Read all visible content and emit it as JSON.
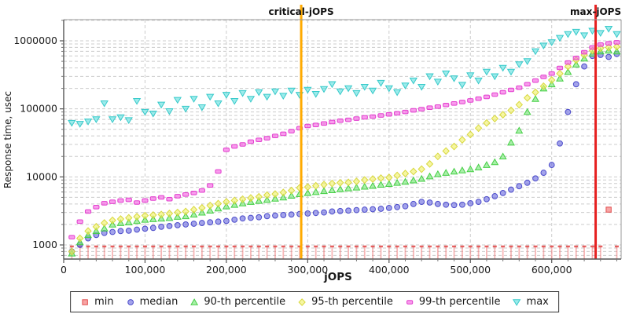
{
  "chart": {
    "y_axis": {
      "title": "Response time, usec",
      "scale": "log",
      "range": [
        620,
        2050000
      ],
      "tick_labels": [
        "1000",
        "10000",
        "100000",
        "1000000"
      ],
      "tick_values": [
        1000,
        10000,
        100000,
        1000000
      ]
    },
    "x_axis": {
      "title": "jOPS",
      "range": [
        0,
        690000
      ],
      "tick_labels": [
        "0",
        "100,000",
        "200,000",
        "300,000",
        "400,000",
        "500,000",
        "600,000"
      ],
      "tick_values": [
        0,
        100000,
        200000,
        300000,
        400000,
        500000,
        600000
      ],
      "minor_step": 20000
    },
    "annotations": [
      {
        "label": "critical-jOPS",
        "value": 292000,
        "color": "#ffaa00"
      },
      {
        "label": "max-jOPS",
        "value": 654000,
        "color": "#e62020"
      }
    ],
    "grid_color": "#cccccc"
  },
  "legend": {
    "items": [
      {
        "label": "min",
        "marker": "square",
        "fill": "#f26d6d",
        "stroke": "#e04848"
      },
      {
        "label": "median",
        "marker": "circle",
        "fill": "#6a6ade",
        "stroke": "#4646c8"
      },
      {
        "label": "90-th percentile",
        "marker": "triangle-up",
        "fill": "#74e574",
        "stroke": "#3ecc3e"
      },
      {
        "label": "95-th percentile",
        "marker": "diamond",
        "fill": "#f0f068",
        "stroke": "#d6d636"
      },
      {
        "label": "99-th percentile",
        "marker": "hbar",
        "fill": "#f45fe0",
        "stroke": "#e238cc"
      },
      {
        "label": "max",
        "marker": "triangle-down",
        "fill": "#5fdfdf",
        "stroke": "#2fc7c7"
      }
    ]
  },
  "chart_data": {
    "type": "scatter",
    "title": "",
    "xlabel": "jOPS",
    "ylabel": "Response time, usec",
    "x": [
      10000,
      20000,
      30000,
      40000,
      50000,
      60000,
      70000,
      80000,
      90000,
      100000,
      110000,
      120000,
      130000,
      140000,
      150000,
      160000,
      170000,
      180000,
      190000,
      200000,
      210000,
      220000,
      230000,
      240000,
      250000,
      260000,
      270000,
      280000,
      290000,
      300000,
      310000,
      320000,
      330000,
      340000,
      350000,
      360000,
      370000,
      380000,
      390000,
      400000,
      410000,
      420000,
      430000,
      440000,
      450000,
      460000,
      470000,
      480000,
      490000,
      500000,
      510000,
      520000,
      530000,
      540000,
      550000,
      560000,
      570000,
      580000,
      590000,
      600000,
      610000,
      620000,
      630000,
      640000,
      650000,
      660000,
      670000,
      680000,
      690000
    ],
    "series": [
      {
        "name": "min",
        "marker": "impulse",
        "fill": "#f26d6d",
        "stroke": "#e04848",
        "values": [
          950,
          950,
          950,
          950,
          950,
          950,
          950,
          950,
          950,
          950,
          950,
          950,
          950,
          950,
          950,
          950,
          950,
          950,
          950,
          950,
          950,
          950,
          950,
          950,
          950,
          950,
          950,
          950,
          950,
          950,
          950,
          950,
          950,
          950,
          950,
          950,
          950,
          950,
          950,
          950,
          950,
          950,
          950,
          950,
          950,
          950,
          950,
          950,
          950,
          950,
          950,
          950,
          950,
          950,
          950,
          950,
          950,
          950,
          950,
          950,
          950,
          950,
          950,
          950,
          950,
          950,
          3300,
          950,
          950
        ]
      },
      {
        "name": "median",
        "marker": "circle",
        "fill": "#6a6ade",
        "stroke": "#4646c8",
        "values": [
          800,
          1000,
          1250,
          1400,
          1500,
          1550,
          1600,
          1620,
          1680,
          1730,
          1780,
          1850,
          1900,
          1950,
          2000,
          2050,
          2100,
          2150,
          2200,
          2250,
          2350,
          2450,
          2500,
          2550,
          2650,
          2700,
          2750,
          2800,
          2850,
          2900,
          2950,
          3000,
          3100,
          3150,
          3200,
          3250,
          3300,
          3350,
          3400,
          3500,
          3600,
          3700,
          4000,
          4300,
          4200,
          4000,
          3900,
          3850,
          3900,
          4100,
          4300,
          4700,
          5200,
          5800,
          6500,
          7300,
          8200,
          9500,
          11500,
          15000,
          31000,
          90000,
          230000,
          420000,
          600000,
          620000,
          580000,
          640000,
          600000
        ]
      },
      {
        "name": "90-th percentile",
        "marker": "triangle-up",
        "fill": "#74e574",
        "stroke": "#3ecc3e",
        "values": [
          750,
          1100,
          1400,
          1600,
          1750,
          2000,
          2100,
          2150,
          2250,
          2350,
          2400,
          2450,
          2500,
          2600,
          2650,
          2800,
          3000,
          3200,
          3450,
          3700,
          3900,
          4100,
          4300,
          4450,
          4600,
          4800,
          5000,
          5300,
          5600,
          5800,
          6000,
          6200,
          6400,
          6600,
          6800,
          7000,
          7200,
          7400,
          7700,
          7900,
          8200,
          8500,
          8900,
          9400,
          10200,
          11000,
          11500,
          12000,
          12500,
          13000,
          13800,
          15000,
          16500,
          20000,
          32000,
          48000,
          90000,
          140000,
          200000,
          230000,
          280000,
          350000,
          450000,
          550000,
          650000,
          700000,
          720000,
          700000,
          710000
        ]
      },
      {
        "name": "95-th percentile",
        "marker": "diamond",
        "fill": "#f0f068",
        "stroke": "#d6d636",
        "values": [
          800,
          1250,
          1600,
          1850,
          2100,
          2300,
          2400,
          2500,
          2600,
          2700,
          2750,
          2800,
          2900,
          3000,
          3100,
          3300,
          3500,
          3800,
          4050,
          4300,
          4500,
          4700,
          4900,
          5100,
          5400,
          5600,
          5900,
          6300,
          6900,
          7100,
          7400,
          7700,
          8000,
          8200,
          8300,
          8600,
          9000,
          9300,
          9600,
          9800,
          10500,
          11200,
          12000,
          13000,
          15500,
          20000,
          24000,
          28000,
          35000,
          42000,
          52000,
          62000,
          72000,
          82000,
          95000,
          115000,
          145000,
          175000,
          215000,
          265000,
          330000,
          420000,
          520000,
          620000,
          720000,
          780000,
          800000,
          820000,
          830000
        ]
      },
      {
        "name": "99-th percentile",
        "marker": "hbar",
        "fill": "#f45fe0",
        "stroke": "#e238cc",
        "values": [
          1300,
          2200,
          3100,
          3600,
          4100,
          4300,
          4500,
          4600,
          4200,
          4500,
          4800,
          5000,
          4700,
          5200,
          5500,
          5800,
          6300,
          7500,
          12000,
          25000,
          28000,
          30000,
          33000,
          35000,
          37000,
          40000,
          43000,
          47000,
          52000,
          56000,
          58000,
          61000,
          64000,
          67000,
          69000,
          72000,
          75000,
          77000,
          80000,
          83000,
          86000,
          90000,
          95000,
          99000,
          104000,
          108000,
          114000,
          120000,
          126000,
          133000,
          141000,
          150000,
          162000,
          175000,
          190000,
          205000,
          230000,
          260000,
          295000,
          330000,
          400000,
          480000,
          560000,
          680000,
          800000,
          880000,
          920000,
          950000,
          960000
        ]
      },
      {
        "name": "max",
        "marker": "triangle-down",
        "fill": "#5fdfdf",
        "stroke": "#2fc7c7",
        "values": [
          62000,
          60000,
          65000,
          70000,
          120000,
          70000,
          75000,
          68000,
          130000,
          90000,
          85000,
          115000,
          92000,
          135000,
          100000,
          140000,
          105000,
          150000,
          120000,
          160000,
          130000,
          170000,
          140000,
          175000,
          150000,
          180000,
          155000,
          185000,
          160000,
          190000,
          165000,
          195000,
          230000,
          180000,
          200000,
          170000,
          210000,
          185000,
          240000,
          200000,
          175000,
          220000,
          260000,
          210000,
          300000,
          250000,
          330000,
          280000,
          225000,
          310000,
          260000,
          350000,
          300000,
          400000,
          350000,
          450000,
          500000,
          700000,
          850000,
          950000,
          1100000,
          1250000,
          1350000,
          1200000,
          1400000,
          1300000,
          1500000,
          1250000,
          1450000
        ]
      }
    ]
  }
}
